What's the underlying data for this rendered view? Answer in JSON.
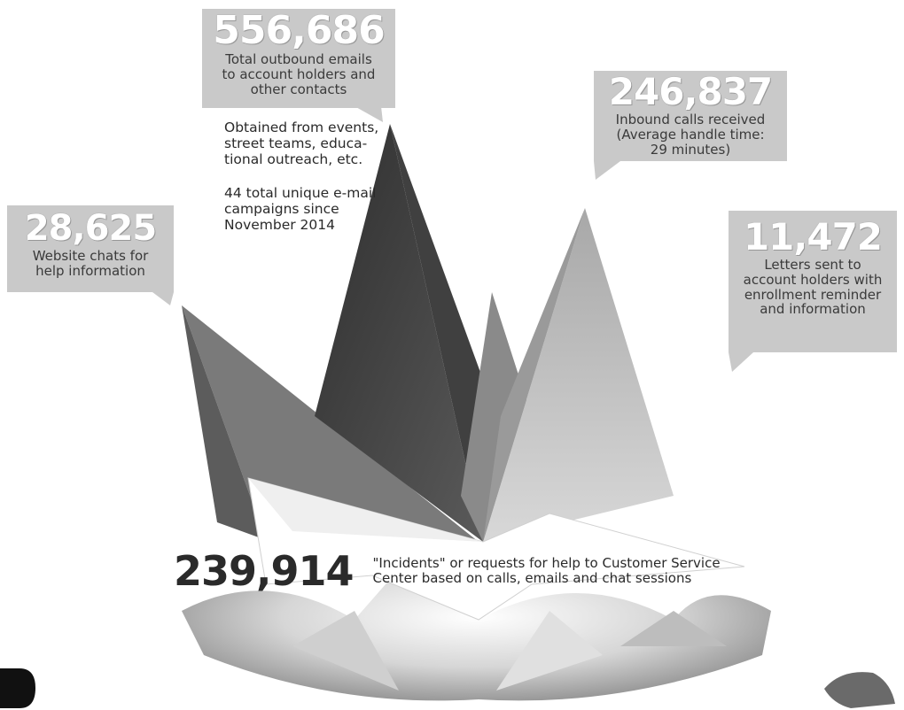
{
  "callouts": {
    "emails": {
      "number": "556,686",
      "text": "Total outbound emails\nto account holders and\nother contacts"
    },
    "calls": {
      "number": "246,837",
      "text": "Inbound calls received\n(Average handle time:\n29 minutes)"
    },
    "chats": {
      "number": "28,625",
      "text": "Website chats for\nhelp information"
    },
    "letters": {
      "number": "11,472",
      "text": "Letters sent to\naccount holders with\nenrollment reminder\nand information"
    }
  },
  "notes": {
    "email_sources": "Obtained from events,\nstreet teams, educa-\ntional outreach, etc.",
    "email_campaigns": "44 total unique e-mail\ncampaigns since\nNovember 2014"
  },
  "incidents": {
    "number": "239,914",
    "text": "\"Incidents\" or requests for help to Customer Service\nCenter based on calls, emails and chat sessions"
  },
  "colors": {
    "callout_bg": "#c9c9c9",
    "spike_dark": "#3a3a3a",
    "spike_mid": "#6e6e6e",
    "spike_light": "#b5b5b5"
  }
}
